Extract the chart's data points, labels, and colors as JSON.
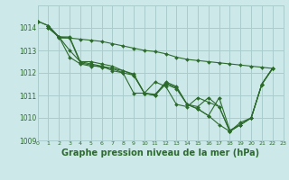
{
  "bg_color": "#cce8e8",
  "grid_color": "#aacccc",
  "line_color": "#2d6b2d",
  "xlabel": "Graphe pression niveau de la mer (hPa)",
  "xlim": [
    0,
    23
  ],
  "ylim": [
    1009,
    1015
  ],
  "yticks": [
    1009,
    1010,
    1011,
    1012,
    1013,
    1014
  ],
  "xticks": [
    0,
    1,
    2,
    3,
    4,
    5,
    6,
    7,
    8,
    9,
    10,
    11,
    12,
    13,
    14,
    15,
    16,
    17,
    18,
    19,
    20,
    21,
    22,
    23
  ],
  "series": [
    {
      "x": [
        0,
        1,
        2,
        3,
        4,
        5,
        6,
        7,
        8,
        9,
        10,
        11,
        12,
        13,
        14,
        15,
        16,
        17,
        18,
        19,
        20,
        21,
        22
      ],
      "y": [
        1014.3,
        1014.1,
        1013.6,
        1013.0,
        1012.5,
        1012.4,
        1012.3,
        1012.2,
        1012.0,
        1011.9,
        1011.1,
        1011.0,
        1011.5,
        1011.3,
        1010.6,
        1010.4,
        1010.1,
        1009.7,
        1009.4,
        1009.8,
        1010.0,
        1011.5,
        1012.2
      ]
    },
    {
      "x": [
        0,
        1,
        2,
        3,
        4,
        5,
        6,
        7,
        8,
        9,
        10,
        11,
        12,
        13,
        14,
        15,
        16,
        17,
        18,
        19,
        20,
        21,
        22
      ],
      "y": [
        1014.3,
        1014.1,
        1013.6,
        1013.6,
        1012.5,
        1012.5,
        1012.4,
        1012.3,
        1012.1,
        1011.9,
        1011.1,
        1011.0,
        1011.6,
        1011.4,
        1010.6,
        1010.5,
        1010.9,
        1010.5,
        1009.4,
        1009.7,
        1010.0,
        1011.5,
        1012.2
      ]
    },
    {
      "x": [
        1,
        2,
        3,
        4,
        5,
        6,
        7,
        8,
        9,
        10,
        11,
        12,
        13,
        14,
        15,
        16,
        17,
        18,
        19,
        20,
        21,
        22
      ],
      "y": [
        1014.0,
        1013.6,
        1012.7,
        1012.4,
        1012.3,
        1012.3,
        1012.1,
        1012.0,
        1011.1,
        1011.1,
        1011.6,
        1011.4,
        1010.6,
        1010.5,
        1010.9,
        1010.7,
        1010.5,
        1009.4,
        1009.7,
        1010.0,
        1011.5,
        1012.2
      ]
    },
    {
      "x": [
        1,
        2,
        3,
        4,
        5,
        6,
        7,
        8,
        9,
        10,
        11,
        12,
        13,
        14,
        15,
        16,
        17,
        18,
        19,
        20,
        21,
        22
      ],
      "y": [
        1014.0,
        1013.6,
        1013.55,
        1012.45,
        1012.35,
        1012.25,
        1012.2,
        1012.1,
        1011.95,
        1011.1,
        1011.05,
        1011.55,
        1011.35,
        1010.6,
        1010.4,
        1010.1,
        1010.9,
        1009.45,
        1009.7,
        1010.0,
        1011.5,
        1012.2
      ]
    },
    {
      "x": [
        1,
        2,
        3,
        4,
        5,
        6,
        7,
        8,
        9,
        10,
        11,
        12,
        13,
        14,
        15,
        16,
        17,
        18,
        19,
        20,
        21,
        22
      ],
      "y": [
        1014.1,
        1013.55,
        1013.55,
        1013.5,
        1013.45,
        1013.4,
        1013.3,
        1013.2,
        1013.1,
        1013.0,
        1012.95,
        1012.85,
        1012.7,
        1012.6,
        1012.55,
        1012.5,
        1012.45,
        1012.4,
        1012.35,
        1012.3,
        1012.25,
        1012.2
      ]
    }
  ]
}
